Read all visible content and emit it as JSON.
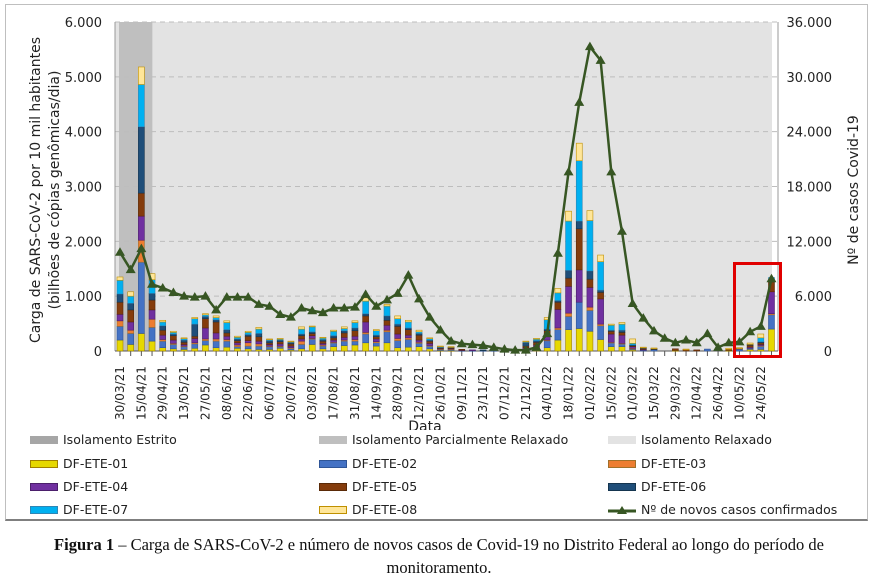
{
  "chart_data": {
    "type": "bar+line",
    "xlabel": "Data",
    "ylabel": "Carga de SARS-CoV-2 por 10 mil habitantes (bilhões de cópias genômicas/dia)",
    "ylabel_line1": "Carga de SARS-CoV-2 por 10 mil habitantes",
    "ylabel_line2": "(bilhões de cópias genômicas/dia)",
    "y2label": "Nº de casos Covid-19",
    "ylim": [
      0,
      6000
    ],
    "y2lim": [
      0,
      36000
    ],
    "yticks": [
      "0",
      "1.000",
      "2.000",
      "3.000",
      "4.000",
      "5.000",
      "6.000"
    ],
    "y2ticks": [
      "0",
      "6.000",
      "12.000",
      "18.000",
      "24.000",
      "30.000",
      "36.000"
    ],
    "grid": true,
    "legend_position": "bottom",
    "x_tick_labels": [
      "30/03/21",
      "15/04/21",
      "29/04/21",
      "13/05/21",
      "27/05/21",
      "08/06/21",
      "22/06/21",
      "06/07/21",
      "20/07/21",
      "03/08/21",
      "17/08/21",
      "31/08/21",
      "14/09/21",
      "28/09/21",
      "12/10/21",
      "26/10/21",
      "09/11/21",
      "23/11/21",
      "07/12/21",
      "21/12/21",
      "04/01/22",
      "18/01/22",
      "01/02/22",
      "15/02/22",
      "01/03/22",
      "15/03/22",
      "29/03/22",
      "12/04/22",
      "26/04/22",
      "10/05/22",
      "24/05/22"
    ],
    "periods": [
      {
        "label": "Isolamento Estrito",
        "color": "#a6a6a6"
      },
      {
        "label": "Isolamento Parcialmente Relaxado",
        "color": "#bfbfbf",
        "weeks": [
          0,
          2
        ]
      },
      {
        "label": "Isolamento Relaxado",
        "color": "#e3e3e3",
        "weeks": [
          3,
          61
        ]
      }
    ],
    "series": [
      {
        "name": "DF-ETE-01",
        "color": "#e6d800",
        "border": "#a08000",
        "values": [
          200,
          120,
          320,
          180,
          60,
          40,
          30,
          50,
          110,
          60,
          70,
          50,
          40,
          30,
          30,
          50,
          20,
          40,
          120,
          40,
          80,
          100,
          110,
          150,
          90,
          150,
          60,
          70,
          80,
          40,
          10,
          10,
          0,
          0,
          0,
          0,
          0,
          0,
          0,
          20,
          60,
          200,
          390,
          410,
          360,
          210,
          80,
          80,
          20,
          0,
          0,
          0,
          10,
          0,
          0,
          0,
          0,
          10,
          0,
          30,
          30,
          400
        ]
      },
      {
        "name": "DF-ETE-02",
        "color": "#4472c4",
        "border": "#2f5597",
        "values": [
          250,
          200,
          1300,
          250,
          120,
          80,
          50,
          80,
          80,
          120,
          110,
          30,
          50,
          60,
          50,
          30,
          30,
          80,
          100,
          50,
          70,
          80,
          70,
          160,
          60,
          200,
          130,
          140,
          60,
          50,
          20,
          20,
          10,
          10,
          10,
          10,
          10,
          0,
          40,
          50,
          130,
          190,
          240,
          480,
          380,
          250,
          70,
          50,
          20,
          20,
          30,
          0,
          0,
          0,
          0,
          35,
          0,
          0,
          40,
          20,
          60,
          260
        ]
      },
      {
        "name": "DF-ETE-03",
        "color": "#ed7d31",
        "border": "#a0702a",
        "values": [
          100,
          60,
          400,
          150,
          30,
          20,
          10,
          20,
          30,
          40,
          30,
          30,
          60,
          40,
          10,
          10,
          10,
          60,
          10,
          20,
          10,
          20,
          30,
          30,
          20,
          30,
          40,
          30,
          20,
          10,
          10,
          10,
          0,
          0,
          0,
          0,
          0,
          0,
          0,
          10,
          10,
          30,
          60,
          0,
          60,
          30,
          10,
          10,
          10,
          0,
          0,
          0,
          0,
          0,
          0,
          0,
          0,
          0,
          0,
          0,
          10,
          20
        ]
      },
      {
        "name": "DF-ETE-04",
        "color": "#7030a0",
        "border": "#4b1f6b",
        "values": [
          120,
          150,
          440,
          170,
          80,
          60,
          30,
          80,
          200,
          110,
          60,
          40,
          40,
          50,
          30,
          40,
          30,
          40,
          50,
          30,
          40,
          50,
          60,
          190,
          50,
          90,
          80,
          50,
          40,
          40,
          10,
          10,
          10,
          10,
          0,
          0,
          0,
          0,
          20,
          30,
          120,
          340,
          490,
          590,
          360,
          460,
          150,
          150,
          30,
          10,
          0,
          0,
          0,
          0,
          0,
          0,
          0,
          0,
          0,
          20,
          20,
          400
        ]
      },
      {
        "name": "DF-ETE-05",
        "color": "#843c0c",
        "border": "#5a2a08",
        "values": [
          220,
          220,
          420,
          180,
          90,
          80,
          40,
          40,
          170,
          200,
          60,
          40,
          80,
          80,
          30,
          40,
          40,
          60,
          40,
          40,
          40,
          80,
          100,
          110,
          40,
          90,
          140,
          100,
          90,
          40,
          10,
          10,
          10,
          0,
          0,
          0,
          0,
          0,
          30,
          50,
          50,
          130,
          150,
          750,
          150,
          120,
          50,
          50,
          20,
          20,
          10,
          0,
          30,
          30,
          20,
          0,
          0,
          20,
          10,
          40,
          30,
          180
        ]
      },
      {
        "name": "DF-ETE-06",
        "color": "#1f4e79",
        "border": "#15354f",
        "values": [
          150,
          120,
          1210,
          120,
          80,
          30,
          40,
          220,
          40,
          40,
          60,
          30,
          30,
          60,
          40,
          30,
          30,
          30,
          30,
          30,
          40,
          40,
          50,
          40,
          30,
          80,
          40,
          30,
          30,
          20,
          10,
          10,
          0,
          0,
          10,
          0,
          0,
          0,
          70,
          30,
          30,
          30,
          140,
          140,
          150,
          40,
          20,
          40,
          10,
          10,
          5,
          0,
          0,
          0,
          0,
          0,
          0,
          0,
          0,
          10,
          20,
          30
        ]
      },
      {
        "name": "DF-ETE-07",
        "color": "#00b0f0",
        "border": "#2e86b5",
        "values": [
          250,
          130,
          770,
          250,
          70,
          30,
          30,
          100,
          30,
          40,
          130,
          30,
          40,
          80,
          20,
          20,
          10,
          90,
          90,
          30,
          80,
          40,
          100,
          230,
          80,
          180,
          100,
          110,
          30,
          30,
          10,
          0,
          0,
          0,
          0,
          0,
          0,
          0,
          10,
          30,
          170,
          140,
          900,
          1100,
          920,
          520,
          90,
          110,
          30,
          0,
          0,
          0,
          0,
          0,
          0,
          0,
          0,
          0,
          0,
          0,
          70,
          50
        ]
      },
      {
        "name": "DF-ETE-08",
        "color": "#ffe699",
        "border": "#bf9000",
        "values": [
          60,
          80,
          320,
          110,
          30,
          20,
          10,
          20,
          20,
          30,
          30,
          20,
          20,
          30,
          10,
          10,
          10,
          40,
          15,
          10,
          20,
          30,
          30,
          60,
          20,
          30,
          50,
          30,
          30,
          10,
          10,
          10,
          0,
          0,
          0,
          0,
          0,
          0,
          10,
          10,
          40,
          80,
          180,
          320,
          180,
          120,
          20,
          30,
          80,
          10,
          10,
          0,
          0,
          5,
          0,
          0,
          0,
          20,
          10,
          25,
          70,
          0
        ]
      },
      {
        "name": "Nº de novos casos confirmados",
        "type": "line",
        "axis": "right",
        "color": "#375623",
        "marker": "triangle",
        "values": [
          10800,
          8900,
          11200,
          7300,
          6900,
          6400,
          6000,
          5900,
          6000,
          4500,
          5900,
          5900,
          5900,
          5100,
          4900,
          4000,
          3700,
          4700,
          4400,
          4200,
          4700,
          4700,
          4800,
          6200,
          4900,
          5600,
          6300,
          8300,
          5700,
          3700,
          2300,
          1100,
          800,
          700,
          600,
          400,
          200,
          100,
          100,
          400,
          1900,
          10700,
          19600,
          27200,
          33300,
          31800,
          19600,
          13100,
          5200,
          3600,
          2200,
          1400,
          900,
          1200,
          900,
          1900,
          400,
          900,
          1000,
          2100,
          2700,
          7900
        ]
      }
    ]
  },
  "legend": {
    "estrito": "Isolamento Estrito",
    "parcial": "Isolamento Parcialmente Relaxado",
    "relaxado": "Isolamento Relaxado",
    "s1": "DF-ETE-01",
    "s2": "DF-ETE-02",
    "s3": "DF-ETE-03",
    "s4": "DF-ETE-04",
    "s5": "DF-ETE-05",
    "s6": "DF-ETE-06",
    "s7": "DF-ETE-07",
    "s8": "DF-ETE-08",
    "line": "Nº de novos casos confirmados"
  },
  "caption": {
    "label": "Figura 1",
    "text": " – Carga de SARS-CoV-2 e número de novos casos de Covid-19 no Distrito Federal ao longo do período de monitoramento."
  }
}
